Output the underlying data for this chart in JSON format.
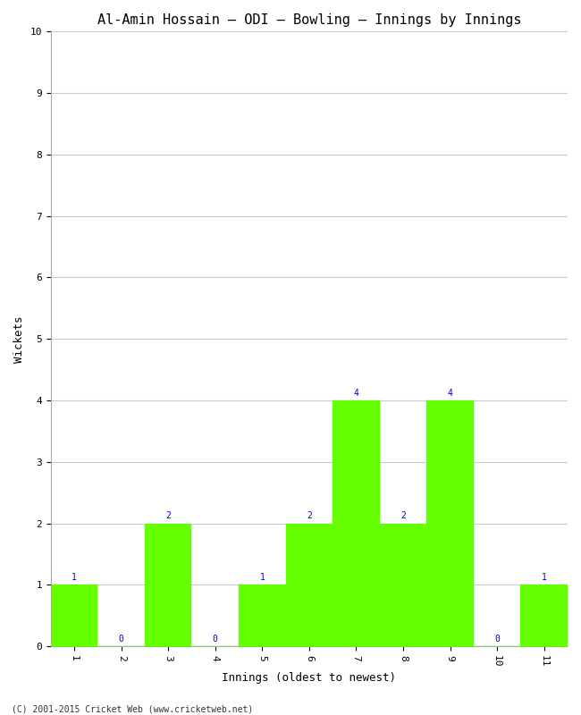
{
  "title": "Al-Amin Hossain – ODI – Bowling – Innings by Innings",
  "xlabel": "Innings (oldest to newest)",
  "ylabel": "Wickets",
  "categories": [
    "1",
    "2",
    "3",
    "4",
    "5",
    "6",
    "7",
    "8",
    "9",
    "10",
    "11"
  ],
  "values": [
    1,
    0,
    2,
    0,
    1,
    2,
    4,
    2,
    4,
    0,
    1
  ],
  "bar_color": "#66ff00",
  "bar_edge_color": "#66ff00",
  "label_color": "#0000cc",
  "ylim": [
    0,
    10
  ],
  "yticks": [
    0,
    1,
    2,
    3,
    4,
    5,
    6,
    7,
    8,
    9,
    10
  ],
  "grid_color": "#cccccc",
  "background_color": "#ffffff",
  "title_fontsize": 11,
  "axis_label_fontsize": 9,
  "tick_fontsize": 8,
  "value_label_fontsize": 7,
  "footer": "(C) 2001-2015 Cricket Web (www.cricketweb.net)",
  "footer_fontsize": 7
}
